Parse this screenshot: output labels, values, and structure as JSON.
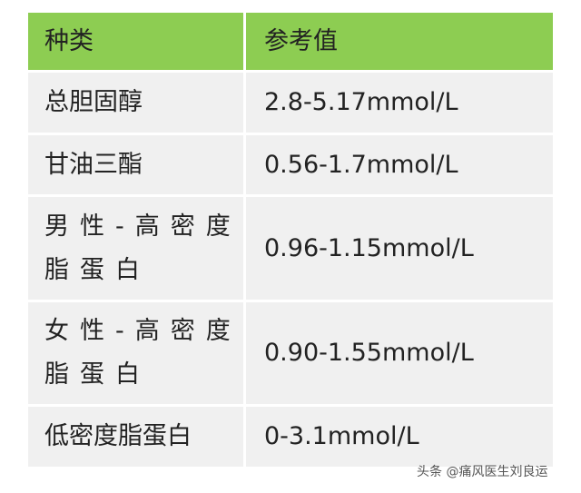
{
  "header": {
    "col1": "种类",
    "col2": "参考值"
  },
  "rows": [
    {
      "name": "总胆固醇",
      "value": "2.8-5.17mmol/L"
    },
    {
      "name": "甘油三酯",
      "value": "0.56-1.7mmol/L"
    },
    {
      "name": "男性-高密度脂蛋白",
      "value": "0.96-1.15mmol/L"
    },
    {
      "name": "女性-高密度脂蛋白",
      "value": "0.90-1.55mmol/L"
    },
    {
      "name": "低密度脂蛋白",
      "value": "0-3.1mmol/L"
    }
  ],
  "watermark": "头条 @痛风医生刘良运",
  "colors": {
    "header_bg": "#8dcd52",
    "cell_bg": "#f0f0f0"
  }
}
